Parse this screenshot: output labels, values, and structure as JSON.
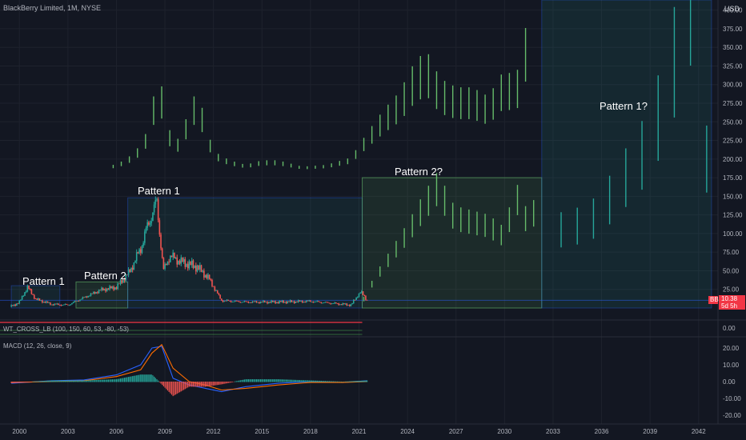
{
  "header": {
    "symbol_title": "BlackBerry Limited, 1M, NYSE",
    "currency": "USD"
  },
  "price_axis": {
    "ticks": [
      "400.00",
      "375.00",
      "350.00",
      "325.00",
      "300.00",
      "275.00",
      "250.00",
      "225.00",
      "200.00",
      "175.00",
      "150.00",
      "125.00",
      "100.00",
      "75.00",
      "50.00",
      "25.00"
    ],
    "tick_values": [
      400,
      375,
      350,
      325,
      300,
      275,
      250,
      225,
      200,
      175,
      150,
      125,
      100,
      75,
      50,
      25
    ],
    "last_price": "10.38",
    "last_price_sub": "5d 5h",
    "symbol_badge": "BB"
  },
  "time_axis": {
    "labels": [
      "2000",
      "2003",
      "2006",
      "2009",
      "2012",
      "2015",
      "2018",
      "2021",
      "2024",
      "2027",
      "2030",
      "2033",
      "2036",
      "2039",
      "2042"
    ]
  },
  "annotations": {
    "pattern1_left": "Pattern 1",
    "pattern2_left": "Pattern 2",
    "pattern1_main": "Pattern 1",
    "pattern2_projection": "Pattern 2?",
    "pattern1_projection": "Pattern 1?"
  },
  "indicators": {
    "wt_cross": {
      "title": "WT_CROSS_LB (100, 150, 60, 53, -80, -53)",
      "tick": "0.00"
    },
    "macd": {
      "title": "MACD (12, 26, close, 9)",
      "ticks": [
        "20.00",
        "10.00",
        "0.00",
        "-10.00",
        "-20.00"
      ],
      "tick_values": [
        20,
        10,
        0,
        -10,
        -20
      ]
    }
  },
  "colors": {
    "background": "#131722",
    "bull": "#26a69a",
    "bear": "#ef5350",
    "projection_green": "#66bb6a",
    "projection_teal": "#26a69a",
    "box_fill": "rgba(38,166,154,0.10)",
    "box_green_fill": "rgba(102,187,106,0.12)",
    "macd_line": "#2962ff",
    "signal_line": "#ff6d00",
    "wt_red": "#f23645"
  },
  "chart_data": {
    "type": "line",
    "series": [
      {
        "name": "",
        "x": [
          1999.5,
          2000.0,
          2000.5,
          2001.0,
          2002.0,
          2003.0,
          2004.0,
          2005.0,
          2006.0,
          2006.8,
          2007.5,
          2008.0,
          2008.5,
          2008.9,
          2009.3,
          2010.0,
          2011.0,
          2011.7,
          2012.5,
          2014.0,
          2016.0,
          2018.0,
          2020.5,
          2021.1,
          2021.5
        ],
        "y": [
          2,
          8,
          28,
          12,
          5,
          4,
          14,
          24,
          28,
          48,
          80,
          115,
          142,
          50,
          70,
          62,
          55,
          40,
          10,
          8,
          8,
          9,
          4,
          22,
          10.38
        ]
      }
    ],
    "projection_top": {
      "x": [
        2005.8,
        2006.5,
        2007.2,
        2008.0,
        2008.6,
        2009.1,
        2009.6,
        2010.3,
        2011.0,
        2011.6,
        2012.0,
        2013.0,
        2014.0,
        2015.0,
        2016.0,
        2017.5,
        2019.0,
        2020.5,
        2021.5,
        2022.5,
        2023.5,
        2024.5,
        2025.2,
        2026.0,
        2027.0,
        2028.0,
        2029.0,
        2030.0,
        2030.7,
        2031.3
      ],
      "y": [
        190,
        195,
        205,
        230,
        300,
        240,
        210,
        240,
        275,
        230,
        205,
        195,
        190,
        195,
        195,
        188,
        190,
        198,
        225,
        250,
        270,
        305,
        315,
        285,
        275,
        275,
        265,
        295,
        285,
        340
      ]
    },
    "projection_mid": {
      "x": [
        2021.3,
        2022.0,
        2023.0,
        2024.0,
        2025.0,
        2026.0,
        2026.5,
        2027.0,
        2028.0,
        2029.0,
        2030.0,
        2030.7,
        2031.3,
        2032.0
      ],
      "y": [
        12,
        40,
        70,
        100,
        135,
        165,
        130,
        120,
        115,
        110,
        95,
        150,
        120,
        130
      ]
    },
    "projection_right": {
      "x": [
        2033.5,
        2034.5,
        2035.5,
        2036.5,
        2037.5,
        2038.5,
        2039.5,
        2040.5,
        2041.5,
        2042.5
      ],
      "y": [
        105,
        110,
        120,
        145,
        175,
        205,
        255,
        330,
        420,
        200
      ]
    },
    "ylim": [
      0,
      405
    ],
    "xlim": [
      1998.8,
      2043.2
    ]
  }
}
